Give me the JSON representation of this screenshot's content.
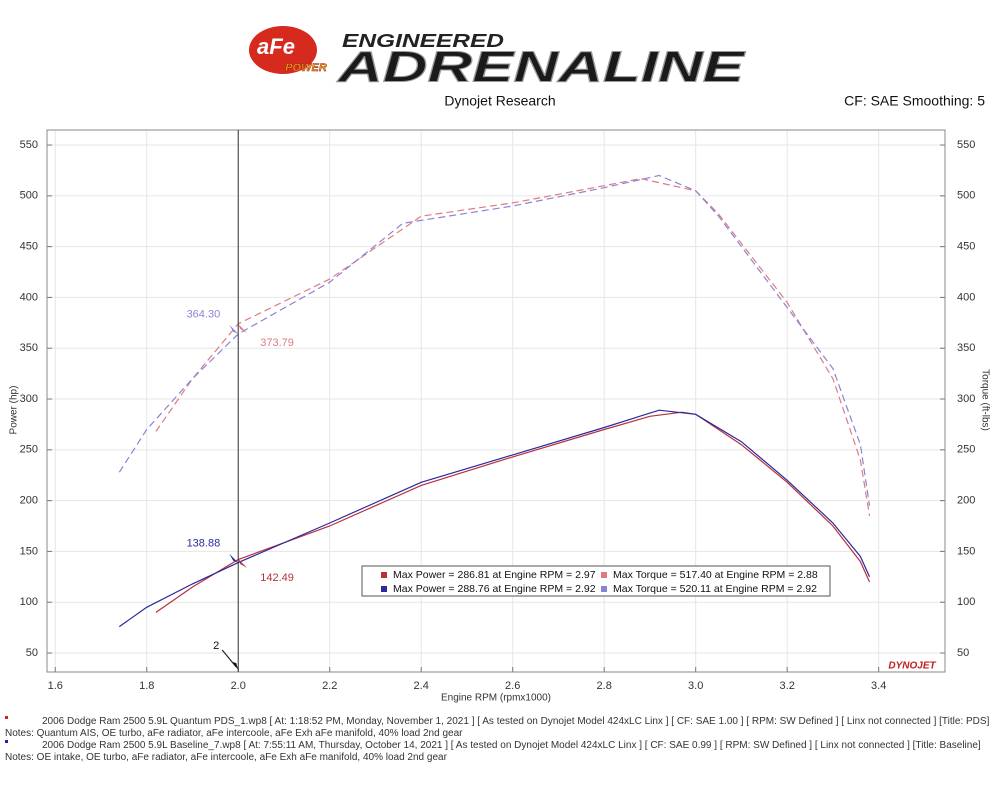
{
  "branding": {
    "logo": "aFe",
    "logo_sub": "POWER",
    "tagline": "ENGINEERED",
    "brand": "ADRENALINE"
  },
  "chart_data": {
    "type": "line",
    "title": "Dynojet Research",
    "subtitle": "CF: SAE Smoothing: 5",
    "x_label": "Engine RPM (rpmx1000)",
    "y_label": "Power (hp)",
    "y2_label": "Torque (ft-lbs)",
    "watermark": "DYNOJET",
    "xlim": [
      1.582,
      3.545
    ],
    "xticks": [
      1.6,
      1.8,
      {
        "value": 2,
        "label": "2.0"
      },
      2.2,
      2.4,
      2.6,
      2.8,
      {
        "value": 3,
        "label": "3.0"
      },
      3.2,
      3.4
    ],
    "ylim": [
      31.3,
      564.8
    ],
    "yticks": [
      50,
      100,
      150,
      200,
      250,
      300,
      350,
      400,
      450,
      500,
      550
    ],
    "y2lim": [
      31.3,
      564.8
    ],
    "y2ticks": [
      50,
      100,
      150,
      200,
      250,
      300,
      350,
      400,
      450,
      500,
      550
    ],
    "grid": true,
    "cursor": {
      "x": 2
    },
    "series": [
      {
        "name": "Max Power = 286.81 at Engine RPM = 2.97",
        "color": "#b8303c",
        "dashed": false,
        "x": [
          1.82,
          1.9,
          2.0,
          2.2,
          2.4,
          2.6,
          2.8,
          2.9,
          2.97,
          3.0,
          3.1,
          3.2,
          3.3,
          3.36,
          3.38
        ],
        "values": [
          90,
          115,
          142,
          175,
          215,
          243,
          270,
          283,
          287,
          285,
          255,
          218,
          175,
          140,
          120
        ],
        "cursor_value": 142.49,
        "cursor_label": "142.49"
      },
      {
        "name": "Max Power = 288.76 at Engine RPM = 2.92",
        "color": "#2a2a9c",
        "dashed": false,
        "x": [
          1.74,
          1.8,
          1.9,
          2.0,
          2.2,
          2.4,
          2.6,
          2.8,
          2.92,
          3.0,
          3.1,
          3.2,
          3.3,
          3.36,
          3.38
        ],
        "values": [
          76,
          95,
          118,
          139,
          178,
          218,
          245,
          272,
          289,
          285,
          258,
          220,
          178,
          145,
          125
        ],
        "cursor_value": 138.88,
        "cursor_label": "138.88"
      },
      {
        "name": "Max Torque = 517.40 at Engine RPM = 2.88",
        "color": "#e07a80",
        "dashed": true,
        "axis": "y2",
        "x": [
          1.82,
          1.9,
          2.0,
          2.2,
          2.4,
          2.6,
          2.8,
          2.88,
          3.0,
          3.05,
          3.2,
          3.3,
          3.36,
          3.38
        ],
        "values": [
          268,
          320,
          374,
          418,
          480,
          493,
          510,
          517,
          505,
          482,
          395,
          320,
          240,
          185
        ],
        "cursor_value": 373.79,
        "cursor_label": "373.79"
      },
      {
        "name": "Max Torque = 520.11 at Engine RPM = 2.92",
        "color": "#8a84d8",
        "dashed": true,
        "axis": "y2",
        "x": [
          1.74,
          1.8,
          1.9,
          2.0,
          2.2,
          2.36,
          2.6,
          2.8,
          2.92,
          3.0,
          3.05,
          3.2,
          3.3,
          3.36,
          3.38
        ],
        "values": [
          228,
          270,
          320,
          364,
          415,
          473,
          490,
          508,
          520,
          505,
          480,
          390,
          330,
          255,
          195
        ],
        "cursor_value": 364.3,
        "cursor_label": "364.30"
      }
    ]
  },
  "notes": [
    "2006 Dodge Ram 2500 5.9L Quantum PDS_1.wp8 [ At: 1:18:52 PM, Monday, November 1, 2021 ] [ As tested on Dynojet Model 424xLC Linx ] [ CF: SAE 1.00 ] [ RPM: SW Defined ] [ Linx not connected ] [Title: PDS]  Notes: Quantum AIS, OE turbo, aFe radiator, aFe intercoole, aFe Exh aFe manifold, 40% load 2nd gear",
    "2006 Dodge Ram 2500 5.9L Baseline_7.wp8 [ At: 7:55:11 AM, Thursday, October 14, 2021 ] [ As tested on Dynojet Model 424xLC Linx ] [ CF: SAE 0.99 ] [ RPM: SW Defined ] [ Linx not connected ] [Title: Baseline]  Notes: OE intake, OE turbo, aFe radiator, aFe intercoole, aFe Exh aFe manifold, 40% load 2nd gear"
  ]
}
